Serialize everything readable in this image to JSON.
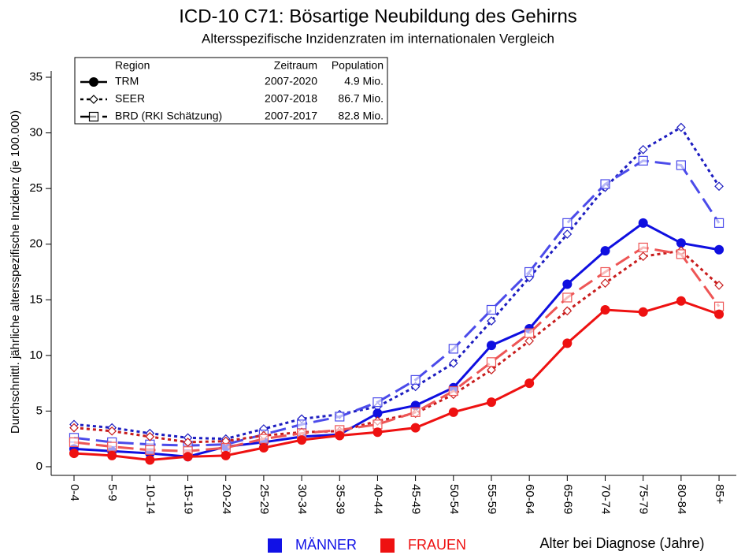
{
  "chart_data": {
    "type": "line",
    "title": "ICD-10 C71: Bösartige Neubildung des Gehirns",
    "subtitle": "Altersspezifische Inzidenzraten im internationalen Vergleich",
    "x_label": "Alter bei Diagnose (Jahre)",
    "y_label": "Durchschnittl. jährliche altersspezifische Inzidenz (je 100.000)",
    "categories": [
      "0-4",
      "5-9",
      "10-14",
      "15-19",
      "20-24",
      "25-29",
      "30-34",
      "35-39",
      "40-44",
      "45-49",
      "50-54",
      "55-59",
      "60-64",
      "65-69",
      "70-74",
      "75-79",
      "80-84",
      "85+"
    ],
    "ylim": [
      0,
      35
    ],
    "yticks": [
      0,
      5,
      10,
      15,
      20,
      25,
      30,
      35
    ],
    "legend_header": [
      "Region",
      "Zeitraum",
      "Population"
    ],
    "regions": [
      {
        "name": "TRM",
        "period": "2007-2020",
        "population": "4.9 Mio.",
        "dash": "solid",
        "marker": "circle"
      },
      {
        "name": "SEER",
        "period": "2007-2018",
        "population": "86.7 Mio.",
        "dash": "dotted",
        "marker": "diamond"
      },
      {
        "name": "BRD (RKI Schätzung)",
        "period": "2007-2017",
        "population": "82.8 Mio.",
        "dash": "dashed",
        "marker": "square"
      }
    ],
    "sexes": [
      {
        "name": "MÄNNER",
        "color": "#1111e6"
      },
      {
        "name": "FRAUEN",
        "color": "#ee1111"
      }
    ],
    "series": [
      {
        "region": 1,
        "sex": 0,
        "color": "#1c1cc0",
        "values": [
          3.8,
          3.5,
          3.0,
          2.6,
          2.5,
          3.4,
          4.3,
          4.7,
          5.4,
          7.2,
          9.3,
          13.1,
          17.0,
          20.9,
          25.1,
          28.5,
          30.5,
          25.2
        ]
      },
      {
        "region": 2,
        "sex": 0,
        "color": "#4b4bea",
        "values": [
          2.6,
          2.2,
          2.0,
          1.9,
          2.0,
          2.9,
          3.8,
          4.5,
          5.8,
          7.8,
          10.6,
          14.1,
          17.5,
          21.9,
          25.4,
          27.5,
          27.1,
          21.9
        ]
      },
      {
        "region": 0,
        "sex": 0,
        "color": "#0f0fe0",
        "values": [
          1.6,
          1.4,
          1.2,
          0.9,
          1.8,
          2.2,
          2.7,
          2.9,
          4.8,
          5.5,
          7.1,
          10.9,
          12.4,
          16.4,
          19.4,
          21.9,
          20.1,
          19.5
        ]
      },
      {
        "region": 1,
        "sex": 1,
        "color": "#c81c1c",
        "values": [
          3.5,
          3.2,
          2.7,
          2.2,
          2.3,
          2.8,
          3.1,
          3.2,
          4.1,
          4.8,
          6.5,
          8.7,
          11.3,
          14.0,
          16.5,
          18.9,
          19.4,
          16.3
        ]
      },
      {
        "region": 2,
        "sex": 1,
        "color": "#ee5555",
        "values": [
          2.2,
          1.8,
          1.5,
          1.4,
          1.7,
          2.5,
          3.0,
          3.3,
          3.8,
          4.9,
          6.8,
          9.4,
          12.0,
          15.2,
          17.5,
          19.7,
          19.1,
          14.4
        ]
      },
      {
        "region": 0,
        "sex": 1,
        "color": "#ee1111",
        "values": [
          1.2,
          1.0,
          0.6,
          0.9,
          1.0,
          1.7,
          2.4,
          2.8,
          3.1,
          3.5,
          4.9,
          5.8,
          7.5,
          11.1,
          14.1,
          13.9,
          14.9,
          13.7
        ]
      }
    ]
  }
}
